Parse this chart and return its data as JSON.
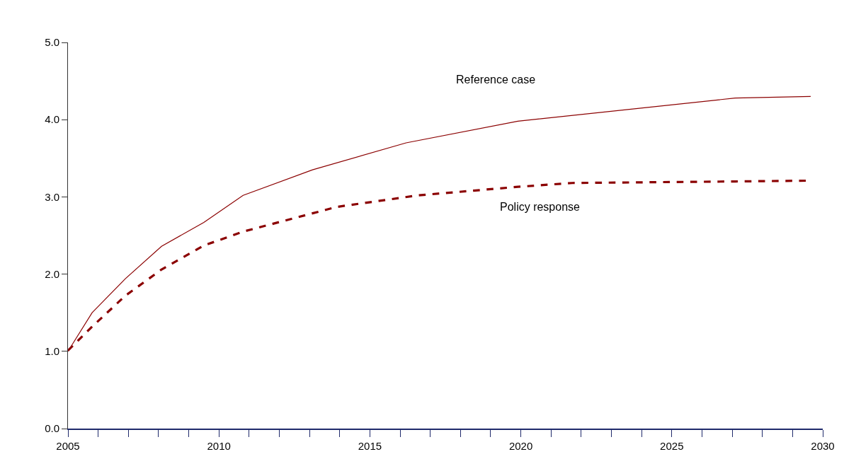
{
  "chart_data": {
    "type": "line",
    "series": [
      {
        "name": null,
        "color": "#8b0000",
        "line_style": "solid",
        "x": [
          2005,
          2005.8,
          2006.9,
          2008.1,
          2009.5,
          2010.8,
          2013.1,
          2016.2,
          2019.9,
          2027.1,
          2029.6
        ],
        "values": [
          1.0,
          1.5,
          1.94,
          2.36,
          2.67,
          3.02,
          3.35,
          3.7,
          3.98,
          4.28,
          4.3
        ]
      },
      {
        "name": null,
        "color": "#8b0000",
        "line_style": "dashed",
        "x": [
          2005,
          2005.8,
          2006.9,
          2008.1,
          2009.5,
          2010.8,
          2013.9,
          2016.6,
          2019.9,
          2021.7,
          2027.1,
          2029.5
        ],
        "values": [
          1.01,
          1.32,
          1.72,
          2.06,
          2.37,
          2.55,
          2.87,
          3.02,
          3.13,
          3.18,
          3.2,
          3.21
        ]
      }
    ],
    "annotations": [
      "Reference case",
      "Policy response"
    ],
    "xlim": [
      2005,
      2030
    ],
    "xticks": [
      2005,
      {
        "value": 2006,
        "label": null
      },
      {
        "value": 2007,
        "label": null
      },
      {
        "value": 2008,
        "label": null
      },
      {
        "value": 2009,
        "label": null
      },
      2010,
      {
        "value": 2011,
        "label": null
      },
      {
        "value": 2012,
        "label": null
      },
      {
        "value": 2013,
        "label": null
      },
      {
        "value": 2014,
        "label": null
      },
      2015,
      {
        "value": 2016,
        "label": null
      },
      {
        "value": 2017,
        "label": null
      },
      {
        "value": 2018,
        "label": null
      },
      {
        "value": 2019,
        "label": null
      },
      2020,
      {
        "value": 2021,
        "label": null
      },
      {
        "value": 2022,
        "label": null
      },
      {
        "value": 2023,
        "label": null
      },
      {
        "value": 2024,
        "label": null
      },
      2025,
      {
        "value": 2026,
        "label": null
      },
      {
        "value": 2027,
        "label": null
      },
      {
        "value": 2028,
        "label": null
      },
      {
        "value": 2029,
        "label": null
      },
      2030
    ],
    "ylim": [
      0,
      5
    ],
    "yticks": [
      {
        "value": 0,
        "label": "0.0"
      },
      {
        "value": 1,
        "label": "1.0"
      },
      {
        "value": 2,
        "label": "2.0"
      },
      {
        "value": 3,
        "label": "3.0"
      },
      {
        "value": 4,
        "label": "4.0"
      },
      {
        "value": 5,
        "label": "5.0"
      }
    ],
    "marker": "none"
  }
}
